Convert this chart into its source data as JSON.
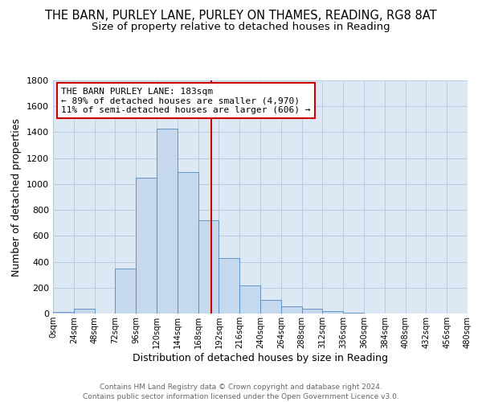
{
  "title": "THE BARN, PURLEY LANE, PURLEY ON THAMES, READING, RG8 8AT",
  "subtitle": "Size of property relative to detached houses in Reading",
  "xlabel": "Distribution of detached houses by size in Reading",
  "ylabel": "Number of detached properties",
  "bin_edges": [
    0,
    24,
    48,
    72,
    96,
    120,
    144,
    168,
    192,
    216,
    240,
    264,
    288,
    312,
    336,
    360,
    384,
    408,
    432,
    456,
    480
  ],
  "bar_heights": [
    15,
    35,
    0,
    350,
    1050,
    1430,
    1090,
    720,
    430,
    220,
    105,
    55,
    40,
    20,
    5,
    3,
    2,
    1,
    0,
    0
  ],
  "bar_color": "#c5d8ee",
  "bar_edge_color": "#5588bb",
  "vline_x": 183,
  "vline_color": "#cc0000",
  "annotation_title": "THE BARN PURLEY LANE: 183sqm",
  "annotation_line1": "← 89% of detached houses are smaller (4,970)",
  "annotation_line2": "11% of semi-detached houses are larger (606) →",
  "annotation_box_color": "white",
  "annotation_box_edge": "#cc0000",
  "xlim": [
    0,
    480
  ],
  "ylim": [
    0,
    1800
  ],
  "yticks": [
    0,
    200,
    400,
    600,
    800,
    1000,
    1200,
    1400,
    1600,
    1800
  ],
  "xtick_labels": [
    "0sqm",
    "24sqm",
    "48sqm",
    "72sqm",
    "96sqm",
    "120sqm",
    "144sqm",
    "168sqm",
    "192sqm",
    "216sqm",
    "240sqm",
    "264sqm",
    "288sqm",
    "312sqm",
    "336sqm",
    "360sqm",
    "384sqm",
    "408sqm",
    "432sqm",
    "456sqm",
    "480sqm"
  ],
  "footer1": "Contains HM Land Registry data © Crown copyright and database right 2024.",
  "footer2": "Contains public sector information licensed under the Open Government Licence v3.0.",
  "background_color": "#ffffff",
  "plot_bg_color": "#dce9f5",
  "grid_color": "#b8ccdf",
  "title_fontsize": 10.5,
  "subtitle_fontsize": 9.5,
  "footer_color": "#666666"
}
